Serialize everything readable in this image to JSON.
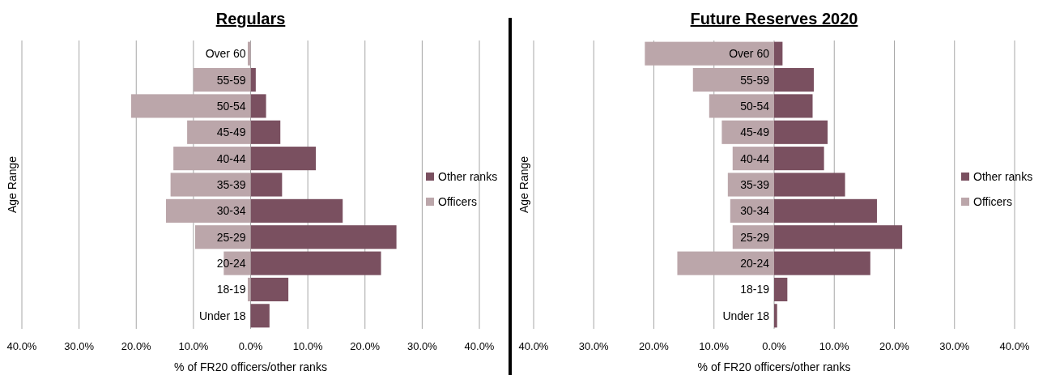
{
  "chart_data": [
    {
      "type": "bar",
      "title": "Regulars",
      "xlabel": "% of FR20 officers/other ranks",
      "ylabel": "Age Range",
      "orientation": "horizontal",
      "stacked": true,
      "categories": [
        "Over 60",
        "55-59",
        "50-54",
        "45-49",
        "40-44",
        "35-39",
        "30-34",
        "25-29",
        "20-24",
        "18-19",
        "Under 18"
      ],
      "series": [
        {
          "name": "Other ranks",
          "color": "#7a5060",
          "values": [
            null,
            0.9,
            2.7,
            5.2,
            11.4,
            5.5,
            16.1,
            25.5,
            22.8,
            6.6,
            3.3
          ]
        },
        {
          "name": "Officers",
          "color": "#bba6aa",
          "values": [
            -0.5,
            -10.0,
            -20.9,
            -11.1,
            -13.5,
            -14.0,
            -14.8,
            -9.7,
            -4.7,
            -0.5,
            0
          ]
        }
      ],
      "xlim": [
        -40,
        40
      ],
      "xticks": [
        {
          "value": -40,
          "label": "40.0%"
        },
        {
          "value": -30,
          "label": "30.0%"
        },
        {
          "value": -20,
          "label": "20.0%"
        },
        {
          "value": -10,
          "label": "10.0%"
        },
        {
          "value": 0,
          "label": "0.0%"
        },
        {
          "value": 10,
          "label": "10.0%"
        },
        {
          "value": 20,
          "label": "20.0%"
        },
        {
          "value": 30,
          "label": "30.0%"
        },
        {
          "value": 40,
          "label": "40.0%"
        }
      ],
      "grid": "x",
      "legend": "right"
    },
    {
      "type": "bar",
      "title": "Future Reserves 2020",
      "xlabel": "% of FR20 officers/other ranks",
      "ylabel": "Age Range",
      "orientation": "horizontal",
      "stacked": true,
      "categories": [
        "Over 60",
        "55-59",
        "50-54",
        "45-49",
        "40-44",
        "35-39",
        "30-34",
        "25-29",
        "20-24",
        "18-19",
        "Under 18"
      ],
      "series": [
        {
          "name": "Other ranks",
          "color": "#7a5060",
          "values": [
            1.4,
            6.6,
            6.4,
            8.9,
            8.3,
            11.8,
            17.1,
            21.3,
            16.0,
            2.2,
            0.5
          ]
        },
        {
          "name": "Officers",
          "color": "#bba6aa",
          "values": [
            -21.5,
            -13.5,
            -10.8,
            -8.7,
            -6.9,
            -7.7,
            -7.3,
            -6.9,
            -16.1,
            0,
            0
          ]
        }
      ],
      "xlim": [
        -40,
        40
      ],
      "xticks": [
        {
          "value": -40,
          "label": "40.0%"
        },
        {
          "value": -30,
          "label": "30.0%"
        },
        {
          "value": -20,
          "label": "20.0%"
        },
        {
          "value": -10,
          "label": "10.0%"
        },
        {
          "value": 0,
          "label": "0.0%"
        },
        {
          "value": 10,
          "label": "10.0%"
        },
        {
          "value": 20,
          "label": "20.0%"
        },
        {
          "value": 30,
          "label": "30.0%"
        },
        {
          "value": 40,
          "label": "40.0%"
        }
      ],
      "grid": "x",
      "legend": "right"
    }
  ]
}
